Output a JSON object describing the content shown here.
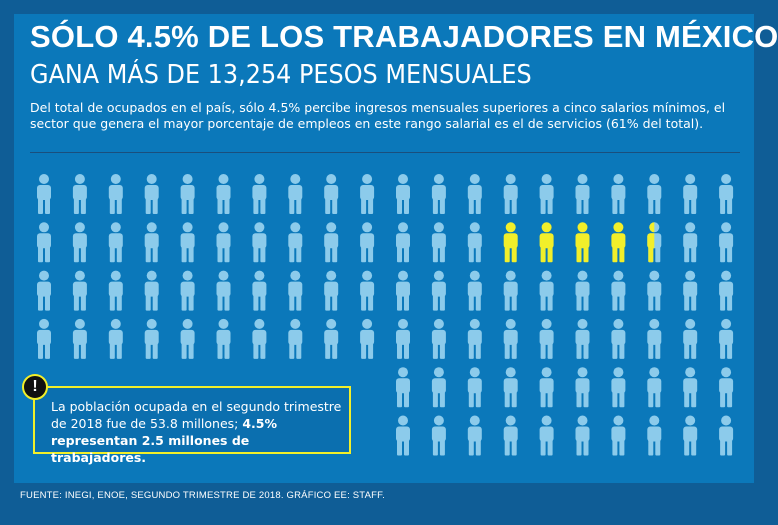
{
  "header": {
    "title": "SÓLO 4.5% DE LOS TRABAJADORES EN MÉXICO",
    "subtitle": "GANA MÁS DE 13,254 PESOS MENSUALES"
  },
  "intro": "Del total de ocupados en el país, sólo 4.5% percibe ingresos mensuales superiores a cinco salarios mínimos, el sector que genera el mayor porcentaje de empleos en este rango salarial es el de servicios (61% del total).",
  "pictogram": {
    "total_icons": 100,
    "highlighted_value": 4.5,
    "highlight_color": "#f2ef2a",
    "base_color": "#8ccbeb"
  },
  "callout": {
    "alert_symbol": "!",
    "text_plain": "La población ocupada en el segundo trimestre de 2018 fue de 53.8 millones; ",
    "text_bold": "4.5% representan 2.5 millones de trabajadores."
  },
  "footer": "FUENTE: INEGI, ENOE, SEGUNDO TRIMESTRE DE 2018. GRÁFICO EE: STAFF.",
  "colors": {
    "background": "#0f5d96",
    "panel": "#0b78ba",
    "accent": "#f2ef2a"
  }
}
